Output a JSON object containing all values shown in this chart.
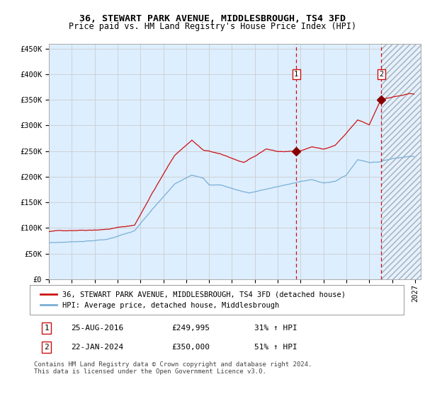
{
  "title": "36, STEWART PARK AVENUE, MIDDLESBROUGH, TS4 3FD",
  "subtitle": "Price paid vs. HM Land Registry's House Price Index (HPI)",
  "ytick_labels": [
    "£0",
    "£50K",
    "£100K",
    "£150K",
    "£200K",
    "£250K",
    "£300K",
    "£350K",
    "£400K",
    "£450K"
  ],
  "yticks": [
    0,
    50000,
    100000,
    150000,
    200000,
    250000,
    300000,
    350000,
    400000,
    450000
  ],
  "ylim": [
    0,
    460000
  ],
  "xlim_start": 1995,
  "xlim_end": 2027.5,
  "hpi_color": "#7aafd4",
  "price_color": "#cc1111",
  "marker_color": "#880000",
  "vline_color": "#cc1111",
  "grid_color": "#cccccc",
  "bg_color": "#ddeeff",
  "hatch_bg": "#e8f0f8",
  "marker1_year": 2016.625,
  "marker1_price": 249995,
  "marker2_year": 2024.04,
  "marker2_price": 350000,
  "legend_line1": "36, STEWART PARK AVENUE, MIDDLESBROUGH, TS4 3FD (detached house)",
  "legend_line2": "HPI: Average price, detached house, Middlesbrough",
  "annot1_date": "25-AUG-2016",
  "annot1_price": "£249,995",
  "annot1_hpi": "31% ↑ HPI",
  "annot2_date": "22-JAN-2024",
  "annot2_price": "£350,000",
  "annot2_hpi": "51% ↑ HPI",
  "footnote": "Contains HM Land Registry data © Crown copyright and database right 2024.\nThis data is licensed under the Open Government Licence v3.0.",
  "title_fontsize": 9.5,
  "subtitle_fontsize": 8.5,
  "tick_fontsize": 7.5,
  "legend_fontsize": 7.5,
  "annot_fontsize": 8,
  "footnote_fontsize": 6.5
}
